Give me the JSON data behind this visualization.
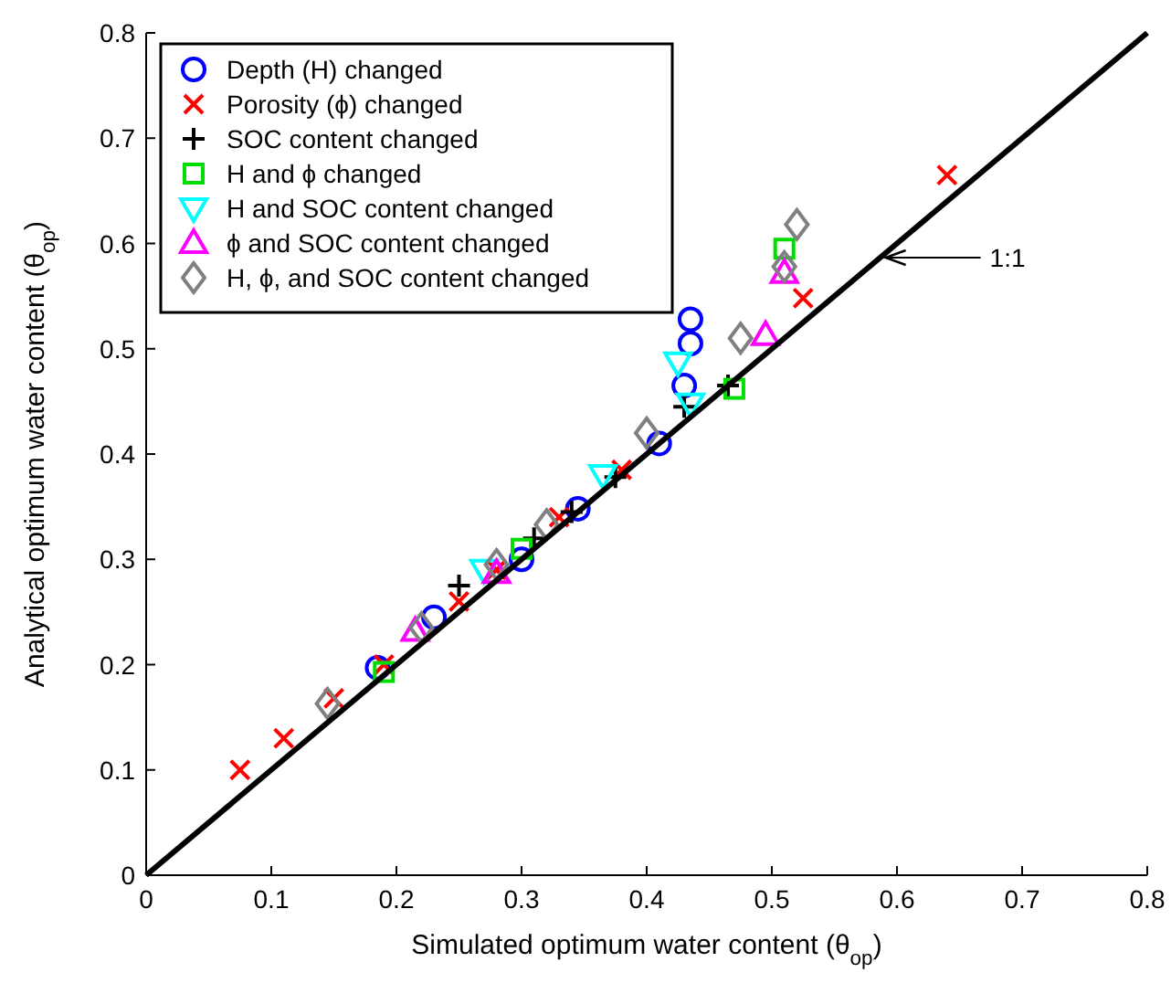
{
  "chart_data": {
    "type": "scatter",
    "xlabel": "Simulated optimum water content (θ$_{op}$)",
    "ylabel": "Analytical optimum water content (θ$_{op}$)",
    "xlim": [
      0,
      0.8
    ],
    "ylim": [
      0,
      0.8
    ],
    "xticks": [
      0,
      0.1,
      0.2,
      0.3,
      0.4,
      0.5,
      0.6,
      0.7,
      0.8
    ],
    "yticks": [
      0,
      0.1,
      0.2,
      0.3,
      0.4,
      0.5,
      0.6,
      0.7,
      0.8
    ],
    "grid": false,
    "legend": "top left",
    "annotations": [
      "1:1"
    ],
    "series": [
      {
        "name": "Depth (H) changed",
        "color": "#0000ff",
        "marker": "circle",
        "x": [
          0.185,
          0.23,
          0.3,
          0.345,
          0.41,
          0.43,
          0.435,
          0.435
        ],
        "values": [
          0.197,
          0.245,
          0.3,
          0.348,
          0.41,
          0.465,
          0.505,
          0.528
        ]
      },
      {
        "name": "Porosity (ϕ) changed",
        "color": "#ff0000",
        "marker": "x",
        "x": [
          0.075,
          0.11,
          0.15,
          0.19,
          0.25,
          0.28,
          0.33,
          0.38,
          0.525,
          0.64
        ],
        "values": [
          0.1,
          0.13,
          0.168,
          0.2,
          0.26,
          0.29,
          0.34,
          0.385,
          0.548,
          0.665
        ]
      },
      {
        "name": "SOC content changed",
        "color": "#000000",
        "marker": "plus",
        "x": [
          0.25,
          0.31,
          0.34,
          0.375,
          0.43,
          0.465
        ],
        "values": [
          0.275,
          0.32,
          0.345,
          0.378,
          0.445,
          0.465
        ]
      },
      {
        "name": "H and ϕ changed",
        "color": "#00dd00",
        "marker": "square",
        "x": [
          0.19,
          0.3,
          0.47,
          0.51
        ],
        "values": [
          0.193,
          0.31,
          0.462,
          0.595
        ]
      },
      {
        "name": "H and SOC content changed",
        "color": "#00ffff",
        "marker": "triangle-down",
        "x": [
          0.27,
          0.365,
          0.425,
          0.435
        ],
        "values": [
          0.29,
          0.38,
          0.487,
          0.448
        ]
      },
      {
        "name": "ϕ and SOC content changed",
        "color": "#ff00ff",
        "marker": "triangle",
        "x": [
          0.215,
          0.28,
          0.495,
          0.51
        ],
        "values": [
          0.232,
          0.287,
          0.513,
          0.572
        ]
      },
      {
        "name": "H, ϕ, and SOC content changed",
        "color": "#808080",
        "marker": "diamond",
        "x": [
          0.145,
          0.22,
          0.28,
          0.32,
          0.4,
          0.475,
          0.51,
          0.52
        ],
        "values": [
          0.163,
          0.235,
          0.295,
          0.333,
          0.42,
          0.51,
          0.578,
          0.618
        ]
      },
      {
        "type": "line",
        "color": "#000000",
        "marker": "none",
        "line_style": "solid",
        "x": [
          0,
          0.8
        ],
        "values": [
          0,
          0.8
        ]
      }
    ]
  }
}
